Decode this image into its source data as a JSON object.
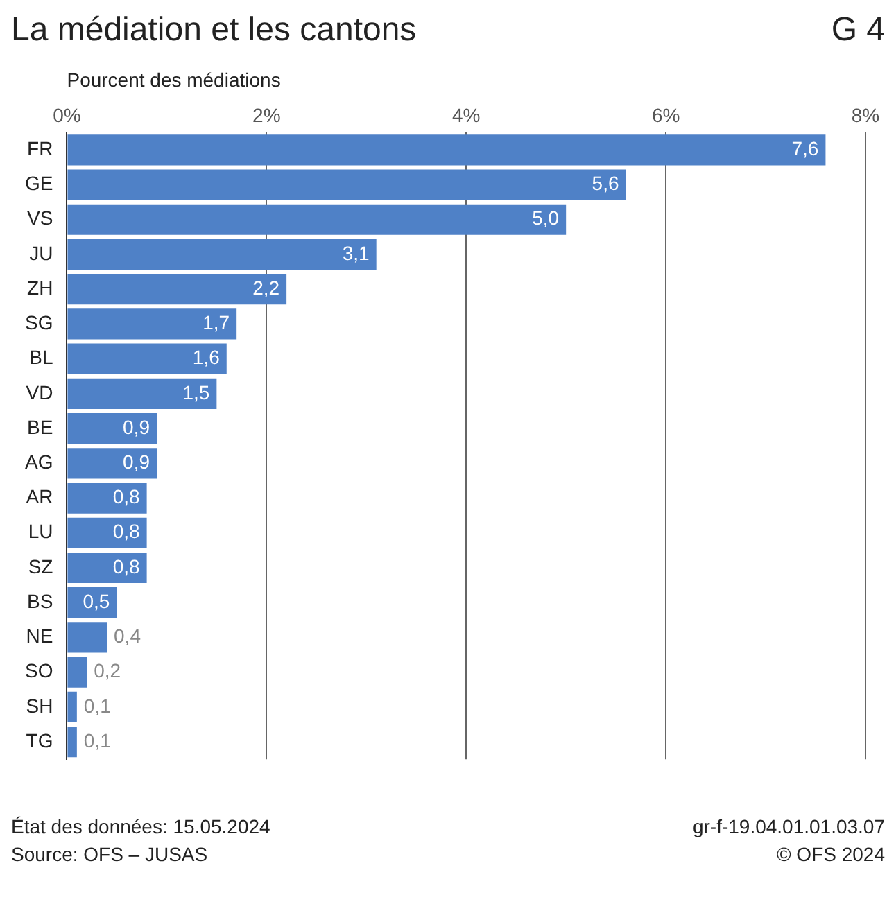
{
  "chart_data": {
    "type": "bar",
    "orientation": "horizontal",
    "title": "La médiation et les cantons",
    "xlabel": "Pourcent des médiations",
    "categories": [
      "FR",
      "GE",
      "VS",
      "JU",
      "ZH",
      "SG",
      "BL",
      "VD",
      "BE",
      "AG",
      "AR",
      "LU",
      "SZ",
      "BS",
      "NE",
      "SO",
      "SH",
      "TG"
    ],
    "values": [
      7.6,
      5.6,
      5.0,
      3.1,
      2.2,
      1.7,
      1.6,
      1.5,
      0.9,
      0.9,
      0.8,
      0.8,
      0.8,
      0.5,
      0.4,
      0.2,
      0.1,
      0.1
    ],
    "value_labels": [
      "7,6",
      "5,6",
      "5,0",
      "3,1",
      "2,2",
      "1,7",
      "1,6",
      "1,5",
      "0,9",
      "0,9",
      "0,8",
      "0,8",
      "0,8",
      "0,5",
      "0,4",
      "0,2",
      "0,1",
      "0,1"
    ],
    "color": "#4f81c7",
    "xlim": [
      0,
      8
    ],
    "xticks": [
      {
        "value": 0,
        "label": "0%"
      },
      {
        "value": 2,
        "label": "2%"
      },
      {
        "value": 4,
        "label": "4%"
      },
      {
        "value": 6,
        "label": "6%"
      },
      {
        "value": 8,
        "label": "8%"
      }
    ],
    "grid": "x",
    "legend": false,
    "annotations": [
      "G 4",
      "État des données: 15.05.2024",
      "Source: OFS – JUSAS",
      "gr-f-19.04.01.01.03.07",
      "© OFS 2024"
    ]
  }
}
